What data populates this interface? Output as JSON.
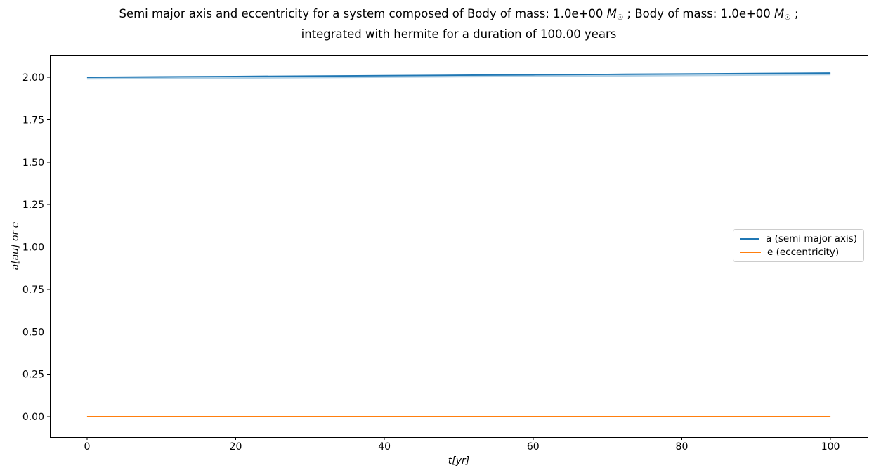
{
  "title": {
    "line1_prefix": "Semi major axis and eccentricity for a system composed of Body of mass: 1.0e+00 ",
    "mass_symbol": "M",
    "sun_subscript": "☉",
    "line1_mid": " ; Body of mass: 1.0e+00 ",
    "line1_suffix": " ;",
    "line2": "integrated with hermite for a duration of 100.00 years"
  },
  "chart_data": {
    "type": "line",
    "title": "Semi major axis and eccentricity for a system composed of Body of mass: 1.0e+00 M☉ ; Body of mass: 1.0e+00 M☉ ; integrated with hermite for a duration of 100.00 years",
    "xlabel": "t[yr]",
    "ylabel": "a[au] or e",
    "xlim": [
      -5,
      105
    ],
    "ylim": [
      -0.12,
      2.133
    ],
    "xticks": [
      0,
      20,
      40,
      60,
      80,
      100
    ],
    "xtick_labels": [
      "0",
      "20",
      "40",
      "60",
      "80",
      "100"
    ],
    "yticks": [
      0.0,
      0.25,
      0.5,
      0.75,
      1.0,
      1.25,
      1.5,
      1.75,
      2.0
    ],
    "ytick_labels": [
      "0.00",
      "0.25",
      "0.50",
      "0.75",
      "1.00",
      "1.25",
      "1.50",
      "1.75",
      "2.00"
    ],
    "grid": false,
    "legend_position": "center right",
    "x": [
      0,
      10,
      20,
      30,
      40,
      50,
      60,
      70,
      80,
      90,
      100
    ],
    "series": [
      {
        "name": "a (semi major axis)",
        "color": "#1f77b4",
        "band": true,
        "values": [
          2.0,
          2.0025,
          2.005,
          2.0075,
          2.01,
          2.0125,
          2.015,
          2.0175,
          2.02,
          2.0225,
          2.025
        ]
      },
      {
        "name": "e (eccentricity)",
        "color": "#ff7f0e",
        "band": false,
        "values": [
          0.0,
          0.0,
          0.0,
          0.0,
          0.0,
          0.0,
          0.0,
          0.0,
          0.0,
          0.0,
          0.0
        ]
      }
    ]
  }
}
